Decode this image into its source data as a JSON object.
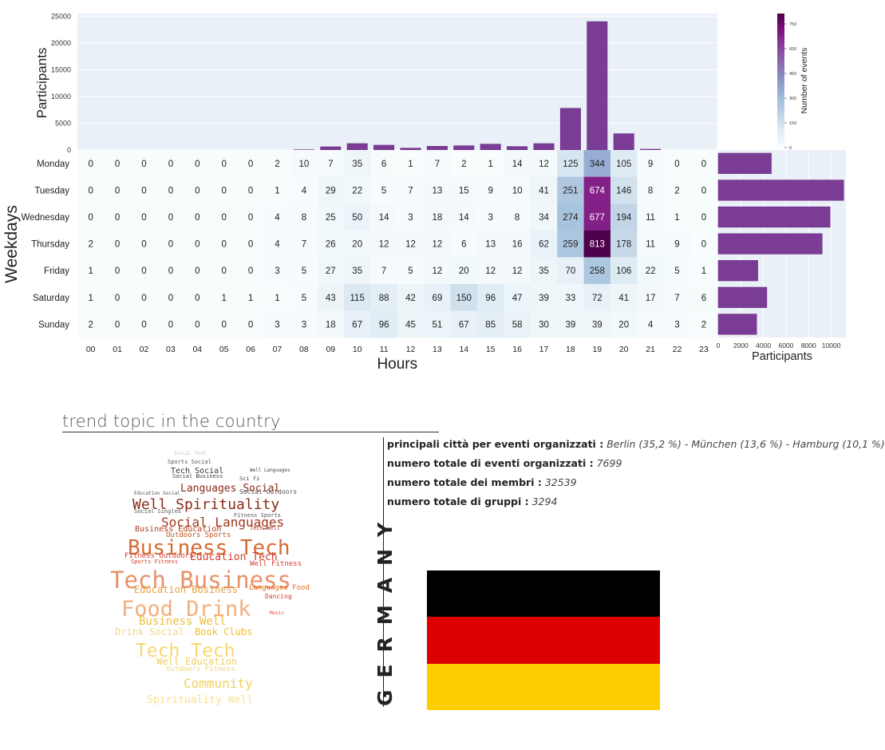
{
  "chart_data": [
    {
      "type": "bar",
      "id": "hourly-participants",
      "categories": [
        "00",
        "01",
        "02",
        "03",
        "04",
        "05",
        "06",
        "07",
        "08",
        "09",
        "10",
        "11",
        "12",
        "13",
        "14",
        "15",
        "16",
        "17",
        "18",
        "19",
        "20",
        "21",
        "22",
        "23"
      ],
      "values": [
        0,
        0,
        0,
        0,
        0,
        0,
        0,
        0,
        50,
        600,
        1200,
        900,
        350,
        700,
        800,
        1100,
        650,
        1200,
        7800,
        24000,
        3050,
        150,
        0,
        0
      ],
      "ylabel": "Participants",
      "ylim": [
        0,
        25500
      ],
      "yticks": [
        0,
        5000,
        10000,
        15000,
        20000,
        25000
      ],
      "color": "#7b3c96"
    },
    {
      "type": "heatmap",
      "id": "weekday-hour-events",
      "xlabel": "Hours",
      "ylabel": "Weekdays",
      "x": [
        "00",
        "01",
        "02",
        "03",
        "04",
        "05",
        "06",
        "07",
        "08",
        "09",
        "10",
        "11",
        "12",
        "13",
        "14",
        "15",
        "16",
        "17",
        "18",
        "19",
        "20",
        "21",
        "22",
        "23"
      ],
      "y": [
        "Monday",
        "Tuesday",
        "Wednesday",
        "Thursday",
        "Friday",
        "Saturday",
        "Sunday"
      ],
      "values": [
        [
          0,
          0,
          0,
          0,
          0,
          0,
          0,
          2,
          10,
          7,
          35,
          6,
          1,
          7,
          2,
          1,
          14,
          12,
          125,
          344,
          105,
          9,
          0,
          0
        ],
        [
          0,
          0,
          0,
          0,
          0,
          0,
          0,
          1,
          4,
          29,
          22,
          5,
          7,
          13,
          15,
          9,
          10,
          41,
          251,
          674,
          146,
          8,
          2,
          0
        ],
        [
          0,
          0,
          0,
          0,
          0,
          0,
          0,
          4,
          8,
          25,
          50,
          14,
          3,
          18,
          14,
          3,
          8,
          34,
          274,
          677,
          194,
          11,
          1,
          0
        ],
        [
          2,
          0,
          0,
          0,
          0,
          0,
          0,
          4,
          7,
          26,
          20,
          12,
          12,
          12,
          6,
          13,
          16,
          62,
          259,
          813,
          178,
          11,
          9,
          0
        ],
        [
          1,
          0,
          0,
          0,
          0,
          0,
          0,
          3,
          5,
          27,
          35,
          7,
          5,
          12,
          20,
          12,
          12,
          35,
          70,
          258,
          106,
          22,
          5,
          1
        ],
        [
          1,
          0,
          0,
          0,
          0,
          1,
          1,
          1,
          5,
          43,
          115,
          88,
          42,
          69,
          150,
          96,
          47,
          39,
          33,
          72,
          41,
          17,
          7,
          6
        ],
        [
          2,
          0,
          0,
          0,
          0,
          0,
          0,
          3,
          3,
          18,
          67,
          96,
          45,
          51,
          67,
          85,
          58,
          30,
          39,
          39,
          20,
          4,
          3,
          2
        ]
      ],
      "colorbar": {
        "label": "Number of events",
        "ticks": [
          0,
          150,
          300,
          450,
          600,
          750
        ],
        "vmin": 0,
        "vmax": 813
      },
      "colormap": [
        "#f7fcfd",
        "#e0ecf4",
        "#bfd3e6",
        "#9ebcda",
        "#8c96c6",
        "#8c6bb1",
        "#88419d",
        "#810f7c",
        "#4d004b"
      ]
    },
    {
      "type": "bar",
      "orientation": "horizontal",
      "id": "weekday-participants",
      "categories": [
        "Monday",
        "Tuesday",
        "Wednesday",
        "Thursday",
        "Friday",
        "Saturday",
        "Sunday"
      ],
      "values": [
        4700,
        11100,
        9900,
        9200,
        3500,
        4300,
        3400
      ],
      "xlabel": "Participants",
      "xlim": [
        0,
        11300
      ],
      "xticks": [
        0,
        2000,
        4000,
        6000,
        8000,
        10000
      ],
      "color": "#7b3c96"
    }
  ],
  "section": {
    "title": "trend topic in the country"
  },
  "info": {
    "cities_label": "principali città per eventi organizzati :",
    "cities_value": "Berlin (35,2 %) - München (13,6 %) - Hamburg  (10,1 %)",
    "events_label": "numero totale di eventi organizzati :",
    "events_value": "7699",
    "members_label": "numero totale dei membri :",
    "members_value": "32539",
    "groups_label": "numero totale di gruppi :",
    "groups_value": "3294"
  },
  "country": "GERMANY",
  "flag_colors": [
    "#000000",
    "#dd0000",
    "#ffce00"
  ],
  "wordcloud": [
    {
      "text": "Social Tech",
      "color": "#c8c8c8"
    },
    {
      "text": "Sports Social",
      "color": "#555555"
    },
    {
      "text": "Tech Social",
      "color": "#333333"
    },
    {
      "text": "Social Business",
      "color": "#444444"
    },
    {
      "text": "Sci fi",
      "color": "#444444"
    },
    {
      "text": "Well Languages",
      "color": "#444444"
    },
    {
      "text": "Languages Social",
      "color": "#8b2a1a"
    },
    {
      "text": "Education Social",
      "color": "#555555"
    },
    {
      "text": "Social Outdoors",
      "color": "#555555"
    },
    {
      "text": "Well Spirituality",
      "color": "#8b2a1a"
    },
    {
      "text": "Social Singles",
      "color": "#555555"
    },
    {
      "text": "Fitness Sports",
      "color": "#555555"
    },
    {
      "text": "Social Languages",
      "color": "#a0381e"
    },
    {
      "text": "Business Education",
      "color": "#b0401e"
    },
    {
      "text": "Tech Well",
      "color": "#a0381e"
    },
    {
      "text": "Outdoors Sports",
      "color": "#c0501e"
    },
    {
      "text": "Business Tech",
      "color": "#d66a32"
    },
    {
      "text": "Fitness Outdoors",
      "color": "#d04030"
    },
    {
      "text": "Education Tech",
      "color": "#d04030"
    },
    {
      "text": "Sports Fitness",
      "color": "#d04030"
    },
    {
      "text": "Well Fitness",
      "color": "#d04030"
    },
    {
      "text": "Tech Business",
      "color": "#e8906a"
    },
    {
      "text": "Education Business",
      "color": "#e8a040"
    },
    {
      "text": "Languages Food",
      "color": "#e07020"
    },
    {
      "text": "Dancing",
      "color": "#d04030"
    },
    {
      "text": "Food Drink",
      "color": "#f0b080"
    },
    {
      "text": "Business Well",
      "color": "#f0c040"
    },
    {
      "text": "Drink Social",
      "color": "#f0d890"
    },
    {
      "text": "Book Clubs",
      "color": "#f0c030"
    },
    {
      "text": "Tech Tech",
      "color": "#f8d870"
    },
    {
      "text": "Well Education",
      "color": "#f0d060"
    },
    {
      "text": "Outdoors Fitness",
      "color": "#f0d880"
    },
    {
      "text": "Community",
      "color": "#f0d060"
    },
    {
      "text": "Spirituality Well",
      "color": "#f8e090"
    },
    {
      "text": "Music",
      "color": "#e04030"
    }
  ]
}
